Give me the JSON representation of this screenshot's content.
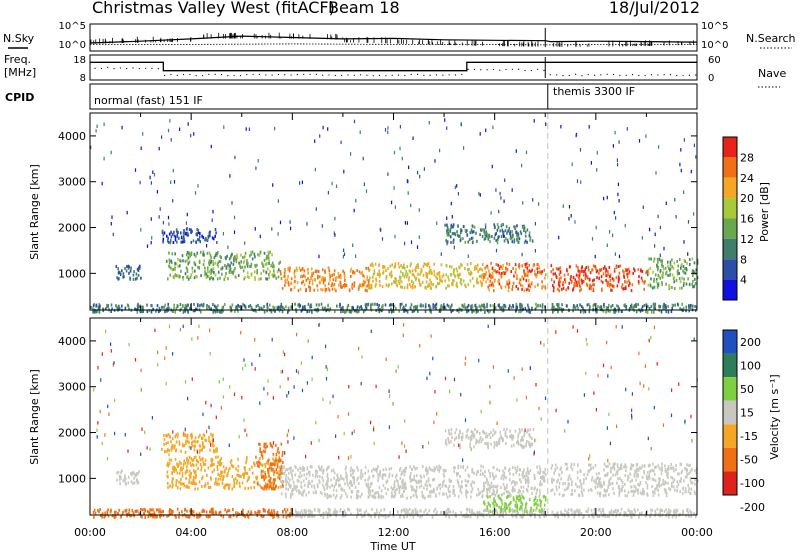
{
  "header": {
    "station": "Christmas Valley West (fitACF)",
    "beam": "Beam 18",
    "date": "18/Jul/2012"
  },
  "side_labels": {
    "nsky": "N.Sky",
    "nsearch": "N.Search",
    "freq_line1": "Freq.",
    "freq_line2": "[MHz]",
    "nave": "Nave",
    "cpid": "CPID"
  },
  "mode_labels": [
    "normal (fast) 151 IF",
    "themis 3300 IF"
  ],
  "chart_data": [
    {
      "type": "line",
      "title": "",
      "panel": "noise",
      "left_ticks": [
        "10^5",
        "10^0"
      ],
      "right_ticks": [
        "10^5",
        "10^0"
      ],
      "series": [
        {
          "name": "N.Sky",
          "x": [
            0,
            2,
            4,
            6,
            8,
            10,
            12,
            14,
            16,
            18,
            18.2,
            20,
            22,
            24
          ],
          "y": [
            1.3,
            1.7,
            2.2,
            2.8,
            2.5,
            2.2,
            2.3,
            2.0,
            1.9,
            1.8,
            1.6,
            1.7,
            1.6,
            1.5
          ]
        },
        {
          "name": "N.Search",
          "x": [
            0,
            4,
            8,
            12,
            16,
            18,
            18.2,
            20,
            24
          ],
          "y": [
            1.0,
            1.0,
            1.1,
            1.0,
            1.0,
            0.9,
            0.9,
            1.0,
            1.0
          ]
        }
      ]
    },
    {
      "type": "line",
      "title": "",
      "panel": "frequency",
      "left_ticks": [
        "18",
        "8"
      ],
      "right_ticks": [
        "60",
        "0"
      ],
      "series": [
        {
          "name": "Freq.",
          "x": [
            0,
            2.9,
            2.9,
            14.9,
            14.9,
            18.0,
            18.2,
            24
          ],
          "y": [
            15.5,
            15.5,
            11.5,
            11.5,
            15.5,
            15.5,
            15.5,
            15.5
          ]
        },
        {
          "name": "Nave",
          "x": [
            0,
            2.9,
            2.9,
            14.9,
            14.9,
            18.0,
            18.2,
            24
          ],
          "y": [
            18,
            18,
            12,
            12,
            18,
            18,
            8,
            8
          ]
        }
      ]
    },
    {
      "type": "heatmap",
      "title": "",
      "ylabel": "Slant Range [km]",
      "colorbar_label": "Power [dB]",
      "colorbar_ticks": [
        "4",
        "8",
        "12",
        "16",
        "20",
        "24",
        "28"
      ],
      "yticks": [
        "1000",
        "2000",
        "3000",
        "4000"
      ],
      "ylim": [
        200,
        4500
      ],
      "xlim": [
        0,
        24
      ],
      "regions": [
        {
          "t0": 0.0,
          "t1": 24.0,
          "r0": 180,
          "r1": 360,
          "value": 10
        },
        {
          "t0": 1.0,
          "t1": 2.0,
          "r0": 900,
          "r1": 1200,
          "value": 8
        },
        {
          "t0": 2.8,
          "t1": 5.0,
          "r0": 1700,
          "r1": 2000,
          "value": 6
        },
        {
          "t0": 3.0,
          "t1": 7.5,
          "r0": 900,
          "r1": 1500,
          "value": 14
        },
        {
          "t0": 7.5,
          "t1": 11.0,
          "r0": 650,
          "r1": 1150,
          "value": 24
        },
        {
          "t0": 11.0,
          "t1": 15.5,
          "r0": 700,
          "r1": 1250,
          "value": 20
        },
        {
          "t0": 15.5,
          "t1": 18.0,
          "r0": 650,
          "r1": 1250,
          "value": 26
        },
        {
          "t0": 18.2,
          "t1": 22.0,
          "r0": 650,
          "r1": 1200,
          "value": 28
        },
        {
          "t0": 22.0,
          "t1": 24.0,
          "r0": 700,
          "r1": 1350,
          "value": 14
        },
        {
          "t0": 14.0,
          "t1": 17.5,
          "r0": 1700,
          "r1": 2100,
          "value": 10
        }
      ]
    },
    {
      "type": "heatmap",
      "title": "",
      "xlabel": "Time UT",
      "ylabel": "Slant Range [km]",
      "colorbar_label": "Velocity [m s⁻¹]",
      "colorbar_ticks": [
        "200",
        "100",
        "50",
        "15",
        "-15",
        "-50",
        "-100",
        "-200"
      ],
      "xticks": [
        "00:00",
        "04:00",
        "08:00",
        "12:00",
        "16:00",
        "20:00",
        "00:00"
      ],
      "yticks": [
        "1000",
        "2000",
        "3000",
        "4000"
      ],
      "ylim": [
        200,
        4500
      ],
      "xlim": [
        0,
        24
      ],
      "regions": [
        {
          "t0": 0.0,
          "t1": 8.0,
          "r0": 180,
          "r1": 360,
          "value": -60
        },
        {
          "t0": 8.0,
          "t1": 24.0,
          "r0": 180,
          "r1": 360,
          "value": 0
        },
        {
          "t0": 1.0,
          "t1": 2.0,
          "r0": 900,
          "r1": 1200,
          "value": 0
        },
        {
          "t0": 2.8,
          "t1": 5.0,
          "r0": 1600,
          "r1": 2000,
          "value": -30
        },
        {
          "t0": 3.0,
          "t1": 7.5,
          "r0": 800,
          "r1": 1500,
          "value": -40
        },
        {
          "t0": 6.5,
          "t1": 7.6,
          "r0": 800,
          "r1": 1800,
          "value": -60
        },
        {
          "t0": 7.5,
          "t1": 18.0,
          "r0": 600,
          "r1": 1300,
          "value": 0
        },
        {
          "t0": 15.5,
          "t1": 18.0,
          "r0": 300,
          "r1": 650,
          "value": 30
        },
        {
          "t0": 18.2,
          "t1": 24.0,
          "r0": 650,
          "r1": 1350,
          "value": 0
        },
        {
          "t0": 14.0,
          "t1": 17.5,
          "r0": 1700,
          "r1": 2100,
          "value": 0
        }
      ]
    }
  ]
}
